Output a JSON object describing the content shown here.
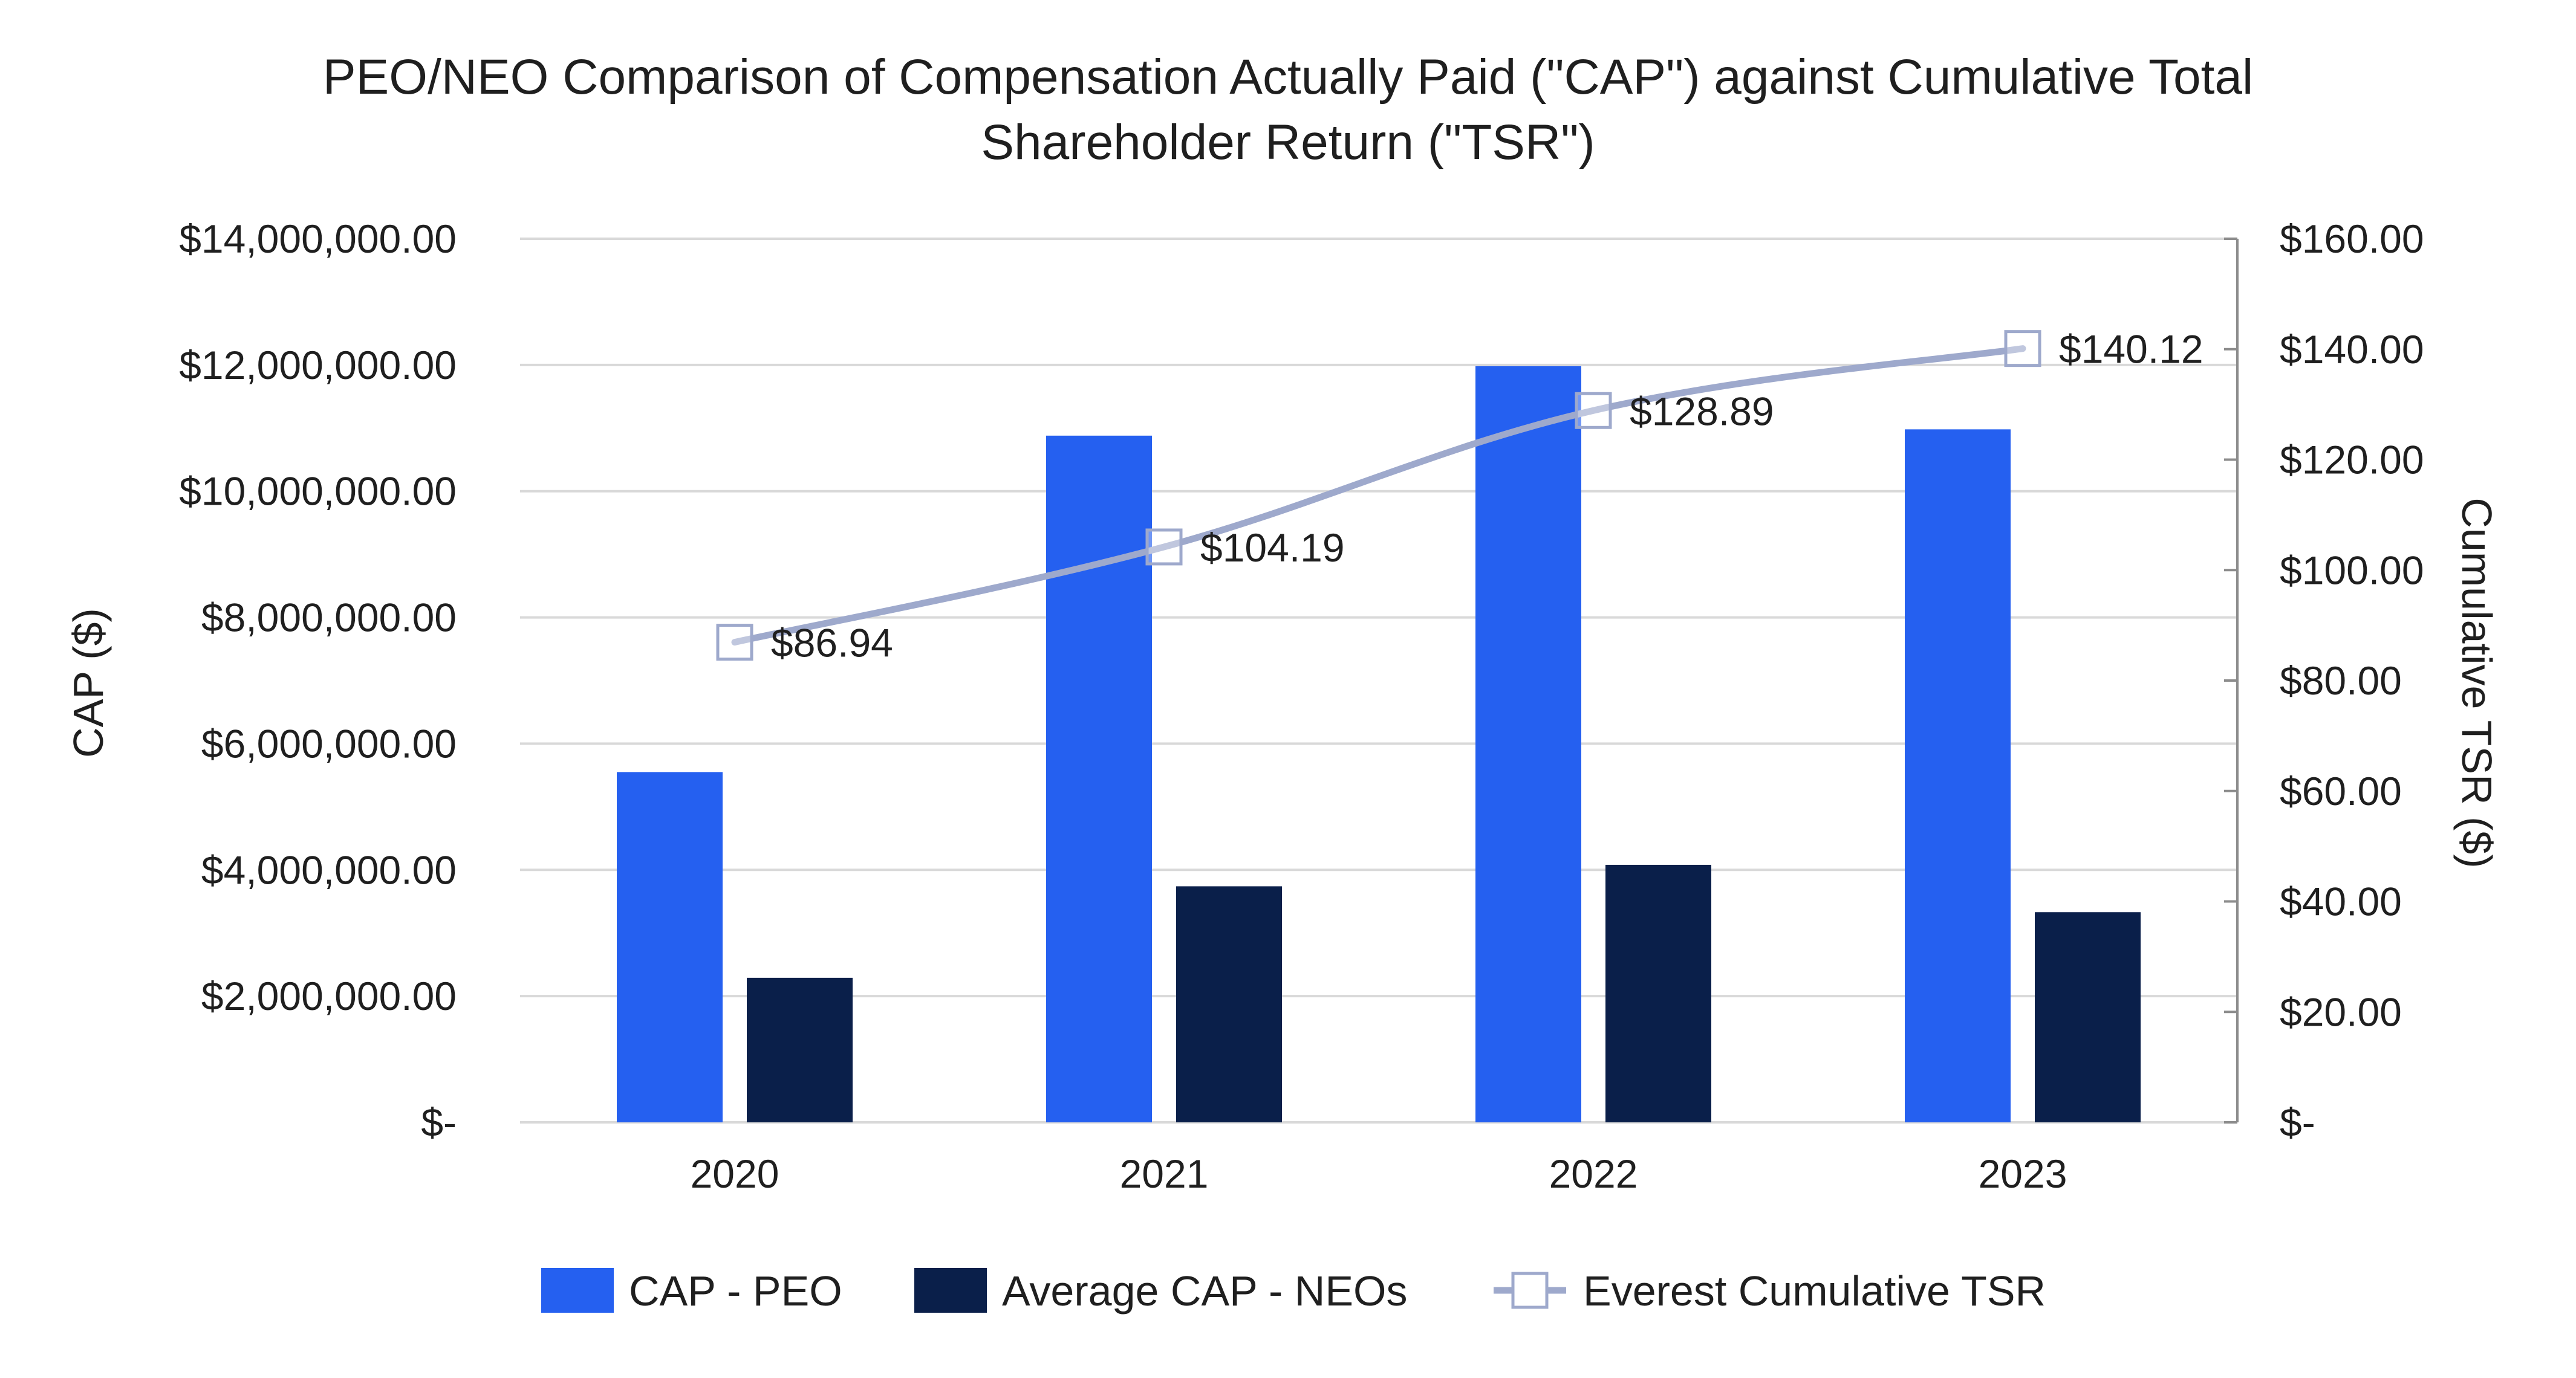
{
  "chart_data": {
    "type": "bar",
    "title_lines": [
      "PEO/NEO Comparison of Compensation Actually Paid (\"CAP\") against Cumulative Total",
      "Shareholder Return (\"TSR\")"
    ],
    "categories": [
      "2020",
      "2021",
      "2022",
      "2023"
    ],
    "series": [
      {
        "name": "CAP - PEO",
        "type": "bar",
        "axis": "left",
        "color": "#2560f0",
        "values": [
          5550000,
          10880000,
          11980000,
          10980000
        ]
      },
      {
        "name": "Average CAP - NEOs",
        "type": "bar",
        "axis": "left",
        "color": "#0a1f4a",
        "values": [
          2290000,
          3740000,
          4080000,
          3330000
        ]
      },
      {
        "name": "Everest Cumulative TSR",
        "type": "line",
        "axis": "right",
        "color": "#9ea9cc",
        "marker": "square",
        "values": [
          86.94,
          104.19,
          128.89,
          140.12
        ],
        "data_labels": [
          "$86.94",
          "$104.19",
          "$128.89",
          "$140.12"
        ]
      }
    ],
    "y_left": {
      "label": "CAP ($)",
      "range": [
        0,
        14000000
      ],
      "ticks": [
        0,
        2000000,
        4000000,
        6000000,
        8000000,
        10000000,
        12000000,
        14000000
      ],
      "tick_labels": [
        "$-",
        "$2,000,000.00",
        "$4,000,000.00",
        "$6,000,000.00",
        "$8,000,000.00",
        "$10,000,000.00",
        "$12,000,000.00",
        "$14,000,000.00"
      ]
    },
    "y_right": {
      "label": "Cumulative TSR ($)",
      "range": [
        0,
        160
      ],
      "ticks": [
        0,
        20,
        40,
        60,
        80,
        100,
        120,
        140,
        160
      ],
      "tick_labels": [
        "$-",
        "$20.00",
        "$40.00",
        "$60.00",
        "$80.00",
        "$100.00",
        "$120.00",
        "$140.00",
        "$160.00"
      ]
    },
    "grid": true,
    "legend_position": "bottom",
    "colors": {
      "grid": "#d9d9d9",
      "axis": "#8c8c8c",
      "text": "#1f1f1f"
    }
  }
}
